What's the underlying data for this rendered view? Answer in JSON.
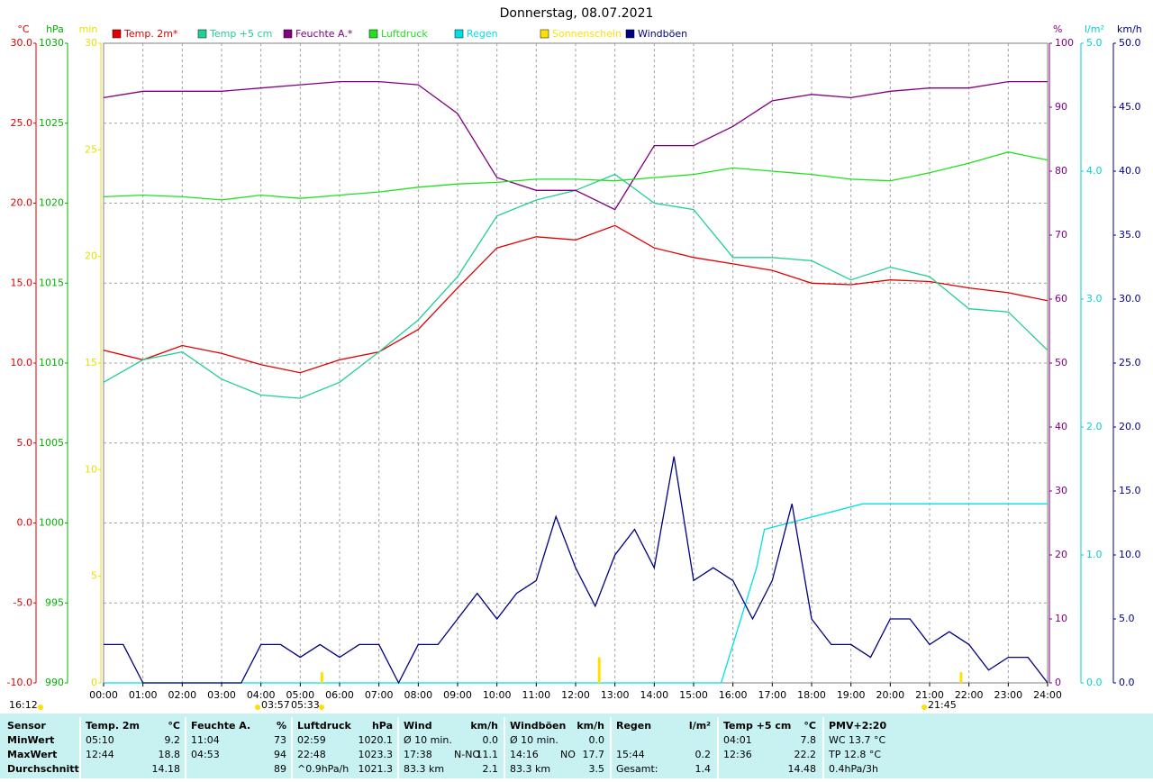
{
  "chart_data": {
    "type": "line",
    "title": "Donnerstag, 08.07.2021",
    "xlim": [
      0,
      24
    ],
    "xticks": [
      {
        "value": 0,
        "label": "00:00"
      },
      {
        "value": 1,
        "label": "01:00"
      },
      {
        "value": 2,
        "label": "02:00"
      },
      {
        "value": 3,
        "label": "03:00"
      },
      {
        "value": 4,
        "label": "04:00"
      },
      {
        "value": 5,
        "label": "05:00"
      },
      {
        "value": 6,
        "label": "06:00"
      },
      {
        "value": 7,
        "label": "07:00"
      },
      {
        "value": 8,
        "label": "08:00"
      },
      {
        "value": 9,
        "label": "09:00"
      },
      {
        "value": 10,
        "label": "10:00"
      },
      {
        "value": 11,
        "label": "11:00"
      },
      {
        "value": 12,
        "label": "12:00"
      },
      {
        "value": 13,
        "label": "13:00"
      },
      {
        "value": 14,
        "label": "14:00"
      },
      {
        "value": 15,
        "label": "15:00"
      },
      {
        "value": 16,
        "label": "16:00"
      },
      {
        "value": 17,
        "label": "17:00"
      },
      {
        "value": 18,
        "label": "18:00"
      },
      {
        "value": 19,
        "label": "19:00"
      },
      {
        "value": 20,
        "label": "20:00"
      },
      {
        "value": 21,
        "label": "21:00"
      },
      {
        "value": 22,
        "label": "22:00"
      },
      {
        "value": 23,
        "label": "23:00"
      },
      {
        "value": 24,
        "label": "24:00"
      }
    ],
    "grid": true,
    "axes": [
      {
        "label": "°C",
        "side": "left",
        "color": "#e00000",
        "lim": [
          -10,
          30
        ],
        "ticks": [
          {
            "value": 30,
            "label": "30.0"
          },
          {
            "value": 25,
            "label": "25.0"
          },
          {
            "value": 20,
            "label": "20.0"
          },
          {
            "value": 15,
            "label": "15.0"
          },
          {
            "value": 10,
            "label": "10.0"
          },
          {
            "value": 5,
            "label": "5.0"
          },
          {
            "value": 0,
            "label": "0.0"
          },
          {
            "value": -5,
            "label": "-5.0"
          },
          {
            "value": -10,
            "label": "-10.0"
          }
        ]
      },
      {
        "label": "hPa",
        "side": "left",
        "color": "#00b000",
        "lim": [
          990,
          1030
        ],
        "ticks": [
          1030,
          1025,
          1020,
          1015,
          1010,
          1005,
          1000,
          995,
          990
        ]
      },
      {
        "label": "min",
        "side": "left",
        "color": "#e8e000",
        "lim": [
          0,
          30
        ],
        "ticks": [
          30,
          25,
          20,
          15,
          10,
          5,
          0
        ]
      },
      {
        "label": "%",
        "side": "right",
        "color": "#800080",
        "lim": [
          0,
          100
        ],
        "ticks": [
          100,
          90,
          80,
          70,
          60,
          50,
          40,
          30,
          20,
          10,
          0
        ]
      },
      {
        "label": "l/m²",
        "side": "right",
        "color": "#00d0d0",
        "lim": [
          0,
          5
        ],
        "ticks": [
          {
            "value": 5,
            "label": "5.0"
          },
          {
            "value": 4,
            "label": "4.0"
          },
          {
            "value": 3,
            "label": "3.0"
          },
          {
            "value": 2,
            "label": "2.0"
          },
          {
            "value": 1,
            "label": "1.0"
          },
          {
            "value": 0,
            "label": "0.0"
          }
        ]
      },
      {
        "label": "km/h",
        "side": "right",
        "color": "#000080",
        "lim": [
          0,
          50
        ],
        "ticks": [
          {
            "value": 50,
            "label": "50.0"
          },
          {
            "value": 45,
            "label": "45.0"
          },
          {
            "value": 40,
            "label": "40.0"
          },
          {
            "value": 35,
            "label": "35.0"
          },
          {
            "value": 30,
            "label": "30.0"
          },
          {
            "value": 25,
            "label": "25.0"
          },
          {
            "value": 20,
            "label": "20.0"
          },
          {
            "value": 15,
            "label": "15.0"
          },
          {
            "value": 10,
            "label": "10.0"
          },
          {
            "value": 5,
            "label": "5.0"
          },
          {
            "value": 0,
            "label": "0.0"
          }
        ]
      }
    ],
    "series": [
      {
        "name": "Temp. 2m*",
        "color": "#e00000",
        "axis": 0,
        "x": [
          0,
          1,
          2,
          3,
          4,
          5,
          6,
          7,
          8,
          9,
          10,
          11,
          12,
          13,
          14,
          15,
          16,
          17,
          18,
          19,
          20,
          21,
          22,
          23,
          24
        ],
        "values": [
          10.8,
          10.2,
          11.1,
          10.6,
          9.9,
          9.4,
          10.2,
          10.7,
          12.1,
          14.7,
          17.2,
          17.9,
          17.7,
          18.6,
          17.2,
          16.6,
          16.2,
          15.8,
          15.0,
          14.9,
          15.2,
          15.1,
          14.7,
          14.4,
          13.9
        ]
      },
      {
        "name": "Temp +5 cm",
        "color": "#20d090",
        "axis": 0,
        "x": [
          0,
          1,
          2,
          3,
          4,
          5,
          6,
          7,
          8,
          9,
          10,
          11,
          12,
          13,
          14,
          15,
          16,
          17,
          18,
          19,
          20,
          21,
          22,
          23,
          24
        ],
        "values": [
          8.8,
          10.2,
          10.7,
          9.0,
          8.0,
          7.8,
          8.8,
          10.7,
          12.7,
          15.4,
          19.2,
          20.2,
          20.8,
          21.8,
          20.0,
          19.6,
          16.6,
          16.6,
          16.4,
          15.2,
          16.0,
          15.4,
          13.4,
          13.2,
          10.8
        ]
      },
      {
        "name": "Feuchte A.*",
        "color": "#800080",
        "axis": 3,
        "x": [
          0,
          1,
          2,
          3,
          4,
          5,
          6,
          7,
          8,
          9,
          10,
          11,
          12,
          13,
          14,
          15,
          16,
          17,
          18,
          19,
          20,
          21,
          22,
          23,
          24
        ],
        "values": [
          91.5,
          92.5,
          92.5,
          92.5,
          93,
          93.5,
          94,
          94,
          93.5,
          89,
          79,
          77,
          77,
          74,
          84,
          84,
          87,
          91,
          92,
          91.5,
          92.5,
          93,
          93,
          94,
          94
        ]
      },
      {
        "name": "Luftdruck",
        "color": "#20e020",
        "axis": 1,
        "x": [
          0,
          1,
          2,
          3,
          4,
          5,
          6,
          7,
          8,
          9,
          10,
          11,
          12,
          13,
          14,
          15,
          16,
          17,
          18,
          19,
          20,
          21,
          22,
          23,
          24
        ],
        "values": [
          1020.4,
          1020.5,
          1020.4,
          1020.2,
          1020.5,
          1020.3,
          1020.5,
          1020.7,
          1021,
          1021.2,
          1021.3,
          1021.5,
          1021.5,
          1021.4,
          1021.6,
          1021.8,
          1022.2,
          1022.0,
          1021.8,
          1021.5,
          1021.4,
          1021.9,
          1022.5,
          1023.2,
          1022.7
        ]
      },
      {
        "name": "Regen",
        "color": "#00e0e0",
        "axis": 4,
        "x": [
          0,
          15.7,
          16.0,
          16.3,
          16.6,
          16.8,
          19.3,
          24
        ],
        "values": [
          0,
          0,
          0.3,
          0.6,
          0.9,
          1.2,
          1.4,
          1.4
        ]
      },
      {
        "name": "Sonnenschein",
        "color": "#ffe000",
        "axis": 2,
        "type": "bar",
        "x": [
          5.55,
          12.6,
          21.8
        ],
        "values": [
          0.5,
          1.2,
          0.5
        ]
      },
      {
        "name": "Windböen",
        "color": "#000080",
        "axis": 5,
        "x": [
          0,
          0.5,
          1,
          1.5,
          2,
          2.5,
          3,
          3.5,
          4,
          4.5,
          5,
          5.5,
          6,
          6.5,
          7,
          7.5,
          8,
          8.5,
          9,
          9.5,
          10,
          10.5,
          11,
          11.5,
          12,
          12.5,
          13,
          13.5,
          14,
          14.5,
          15,
          15.5,
          16,
          16.5,
          17,
          17.5,
          18,
          18.5,
          19,
          19.5,
          20,
          20.5,
          21,
          21.5,
          22,
          22.5,
          23,
          23.5,
          24
        ],
        "values": [
          3,
          3,
          0,
          0,
          0,
          0,
          0,
          0,
          3,
          3,
          2,
          3,
          2,
          3,
          3,
          0,
          3,
          3,
          5,
          7,
          5,
          7,
          8,
          13,
          9,
          6,
          10,
          12,
          9,
          17.7,
          8,
          9,
          8,
          5,
          8,
          14,
          5,
          3,
          3,
          2,
          5,
          5,
          3,
          4,
          3,
          1,
          2,
          2,
          0
        ]
      }
    ],
    "annotations": [
      "16:12",
      "03:57",
      "05:33",
      "21:45"
    ]
  },
  "table": {
    "columns": [
      {
        "title": "Sensor"
      },
      {
        "title": "Temp. 2m",
        "unit": "°C"
      },
      {
        "title": "Feuchte A.",
        "unit": "%"
      },
      {
        "title": "Luftdruck",
        "unit": "hPa"
      },
      {
        "title": "Wind",
        "unit": "km/h"
      },
      {
        "title": "Windböen",
        "unit": "km/h"
      },
      {
        "title": "Regen",
        "unit": "l/m²"
      },
      {
        "title": "Temp +5 cm",
        "unit": "°C"
      },
      {
        "title": "PMV+2:20"
      }
    ],
    "rows": [
      {
        "label": "MinWert",
        "cells": [
          [
            "05:10",
            "9.2"
          ],
          [
            "11:04",
            "73"
          ],
          [
            "02:59",
            "1020.1"
          ],
          [
            "Ø 10 min.",
            "0.0"
          ],
          [
            "Ø 10 min.",
            "0.0"
          ],
          [],
          [
            "04:01",
            "7.8"
          ],
          [
            "WC 13.7 °C"
          ]
        ]
      },
      {
        "label": "MaxWert",
        "cells": [
          [
            "12:44",
            "18.8"
          ],
          [
            "04:53",
            "94"
          ],
          [
            "22:48",
            "1023.3"
          ],
          [
            "17:38",
            "N-NO",
            "11.1"
          ],
          [
            "14:16",
            "NO",
            "17.7"
          ],
          [
            "15:44",
            "0.2"
          ],
          [
            "12:36",
            "22.2"
          ],
          [
            "TP 12.8 °C"
          ]
        ]
      },
      {
        "label": "Durchschnitt",
        "cells": [
          [
            "14.18"
          ],
          [
            "89"
          ],
          [
            "^0.9hPa/h",
            "1021.3"
          ],
          [
            "83.3 km",
            "2.1"
          ],
          [
            "83.3 km",
            "3.5"
          ],
          [
            "Gesamt:",
            "1.4"
          ],
          [
            "14.48"
          ],
          [
            "0.4hPa/3h"
          ]
        ]
      }
    ]
  }
}
